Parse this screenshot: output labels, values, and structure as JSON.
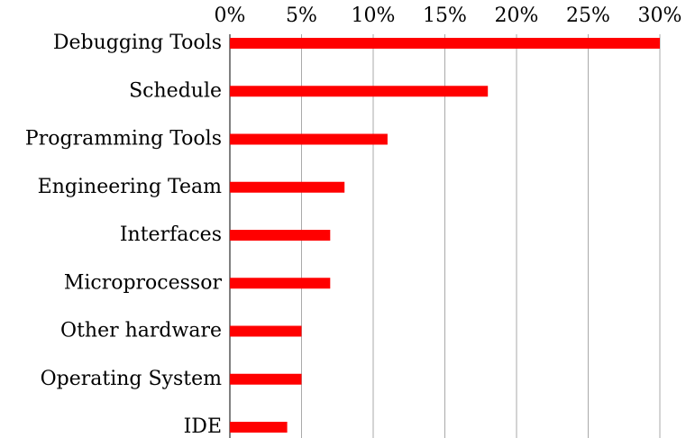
{
  "chart_data": {
    "type": "bar",
    "orientation": "horizontal",
    "categories": [
      "Debugging Tools",
      "Schedule",
      "Programming Tools",
      "Engineering Team",
      "Interfaces",
      "Microprocessor",
      "Other hardware",
      "Operating System",
      "IDE"
    ],
    "values": [
      30,
      18,
      11,
      8,
      7,
      7,
      5,
      5,
      4
    ],
    "color": "#ff0000",
    "xlim": [
      0,
      30
    ],
    "xticks": [
      {
        "value": 0,
        "label": "0%"
      },
      {
        "value": 5,
        "label": "5%"
      },
      {
        "value": 10,
        "label": "10%"
      },
      {
        "value": 15,
        "label": "15%"
      },
      {
        "value": 20,
        "label": "20%"
      },
      {
        "value": 25,
        "label": "25%"
      },
      {
        "value": 30,
        "label": "30%"
      }
    ],
    "grid": true
  }
}
